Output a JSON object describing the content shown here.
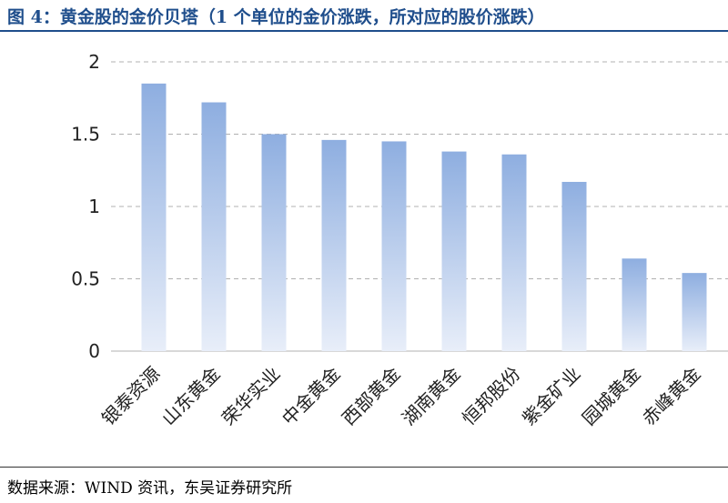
{
  "figure": {
    "title": "图 4：黄金股的金价贝塔（1 个单位的金价涨跌，所对应的股价涨跌）",
    "source": "数据来源：WIND 资讯，东吴证券研究所"
  },
  "chart_data": {
    "type": "bar",
    "categories": [
      "银泰资源",
      "山东黄金",
      "荣华实业",
      "中金黄金",
      "西部黄金",
      "湖南黄金",
      "恒邦股份",
      "紫金矿业",
      "园城黄金",
      "赤峰黄金"
    ],
    "values": [
      1.85,
      1.72,
      1.5,
      1.46,
      1.45,
      1.38,
      1.36,
      1.17,
      0.64,
      0.54
    ],
    "yticks": [
      "0",
      "0.5",
      "1",
      "1.5",
      "2"
    ],
    "ylim": [
      0,
      2
    ],
    "grid": true,
    "colors": {
      "bar_top": "#8eaee0",
      "bar_bottom": "#e8eef9",
      "grid": "#b0b0b0"
    }
  }
}
